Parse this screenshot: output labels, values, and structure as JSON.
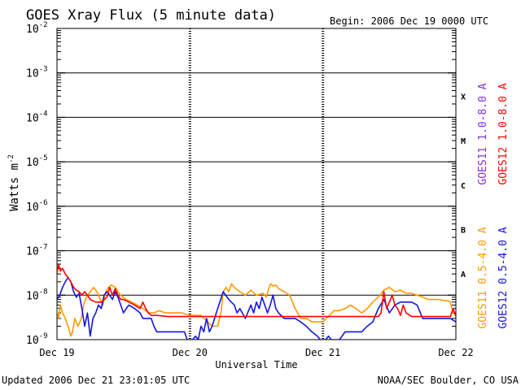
{
  "chart_data": {
    "type": "line",
    "title": "GOES Xray Flux (5 minute data)",
    "begin_label": "Begin:  2006 Dec 19 0000 UTC",
    "xlabel": "Universal Time",
    "ylabel": "Watts m",
    "ylabel_sup": "-2",
    "x_ticks": [
      "Dec 19",
      "Dec 20",
      "Dec 21",
      "Dec 22"
    ],
    "xlim": [
      0,
      72
    ],
    "x_unit": "hours since 2006 Dec 19 0000 UTC",
    "ylim": [
      1e-09,
      0.01
    ],
    "y_scale": "log",
    "y_tick_labels": [
      {
        "base": "10",
        "exp": "-9",
        "value": 1e-09
      },
      {
        "base": "10",
        "exp": "-8",
        "value": 1e-08
      },
      {
        "base": "10",
        "exp": "-7",
        "value": 1e-07
      },
      {
        "base": "10",
        "exp": "-6",
        "value": 1e-06
      },
      {
        "base": "10",
        "exp": "-5",
        "value": 1e-05
      },
      {
        "base": "10",
        "exp": "-4",
        "value": 0.0001
      },
      {
        "base": "10",
        "exp": "-3",
        "value": 0.001
      },
      {
        "base": "10",
        "exp": "-2",
        "value": 0.01
      }
    ],
    "flare_classes": [
      {
        "label": "X",
        "value": 0.0003
      },
      {
        "label": "M",
        "value": 3e-05
      },
      {
        "label": "C",
        "value": 3e-06
      },
      {
        "label": "B",
        "value": 3e-07
      },
      {
        "label": "A",
        "value": 3e-08
      }
    ],
    "series": [
      {
        "name": "GOES11 0.5-4.0 A",
        "color": "#ff9900",
        "x": [
          0,
          0.3,
          0.6,
          1,
          1.5,
          2,
          2.5,
          2.8,
          3.2,
          3.8,
          4.4,
          4.8,
          5.3,
          6,
          6.6,
          7.2,
          7.8,
          8.3,
          8.8,
          9.3,
          9.8,
          10.5,
          11,
          11.5,
          12.5,
          13.5,
          14.5,
          15.5,
          16.5,
          17.5,
          18.5,
          19.5,
          20.5,
          21.5,
          22.5,
          24,
          26,
          28,
          29,
          29.6,
          30,
          30.5,
          31,
          31.5,
          32,
          33,
          34,
          35,
          36,
          37.2,
          37.8,
          38.2,
          38.6,
          39,
          39.5,
          40,
          40.5,
          41,
          42,
          43,
          44,
          45,
          46,
          48,
          50,
          51,
          52,
          53,
          54,
          55,
          56,
          57,
          58,
          59,
          60,
          61,
          62,
          63,
          64,
          65,
          66,
          67,
          68,
          69,
          70,
          70.5,
          71,
          71.5,
          72
        ],
        "y": [
          5e-09,
          3e-09,
          6e-09,
          4e-09,
          3e-09,
          2e-09,
          1.2e-09,
          1.5e-09,
          3e-09,
          2e-09,
          3e-09,
          6e-09,
          9e-09,
          1.2e-08,
          1.5e-08,
          1.2e-08,
          8e-09,
          6e-09,
          1.2e-08,
          1.5e-08,
          1.7e-08,
          1.5e-08,
          1.2e-08,
          1e-08,
          8e-09,
          7e-09,
          6e-09,
          5e-09,
          4e-09,
          4e-09,
          4.5e-09,
          4e-09,
          4e-09,
          4e-09,
          4e-09,
          3.5e-09,
          3.5e-09,
          2e-09,
          2e-09,
          4e-09,
          1.2e-08,
          1.5e-08,
          1.2e-08,
          1.8e-08,
          1.5e-08,
          1.2e-08,
          1e-08,
          1.3e-08,
          1e-08,
          1.1e-08,
          9e-09,
          1.4e-08,
          1.8e-08,
          1.6e-08,
          1.7e-08,
          1.4e-08,
          1.3e-08,
          1.2e-08,
          1e-08,
          5e-09,
          3e-09,
          3e-09,
          2.5e-09,
          2.5e-09,
          4.5e-09,
          4.5e-09,
          5e-09,
          6e-09,
          5e-09,
          4e-09,
          5e-09,
          7e-09,
          9e-09,
          1.3e-08,
          1.5e-08,
          1.2e-08,
          1.3e-08,
          1.1e-08,
          1.1e-08,
          1e-08,
          9e-09,
          8e-09,
          8e-09,
          8e-09,
          7.5e-09,
          7.5e-09,
          7e-09,
          4e-09,
          3.5e-09
        ]
      },
      {
        "name": "GOES12 0.5-4.0 A",
        "color": "#1515e0",
        "x": [
          0,
          0.5,
          1,
          1.5,
          2,
          2.5,
          3,
          3.5,
          4,
          4.5,
          5,
          5.5,
          6,
          6.5,
          7,
          7.5,
          8,
          8.5,
          9,
          9.5,
          10,
          10.5,
          11,
          11.5,
          12,
          12.5,
          13,
          14,
          15,
          15.5,
          16,
          16.5,
          17,
          17.5,
          18,
          19,
          20,
          22,
          23,
          23.5,
          24,
          24.5,
          25,
          25.5,
          26,
          26.5,
          27,
          27.5,
          28,
          29,
          30,
          31,
          32,
          32.5,
          33,
          34,
          35,
          35.5,
          36,
          36.5,
          37,
          37.5,
          38,
          38.5,
          39,
          39.5,
          40,
          41,
          42,
          43,
          44,
          45,
          46,
          47,
          47.5,
          48,
          48.5,
          49,
          49.5,
          50,
          51,
          52,
          53,
          54,
          55,
          56,
          57,
          58,
          59,
          60,
          61,
          62,
          63,
          64,
          65,
          66,
          67,
          68,
          69,
          70,
          71,
          72
        ],
        "y": [
          8e-09,
          1e-08,
          1.5e-08,
          2e-08,
          2.5e-08,
          2e-08,
          1.2e-08,
          9e-09,
          1.1e-08,
          5e-09,
          2e-09,
          4e-09,
          1.2e-09,
          3e-09,
          4e-09,
          6e-09,
          5e-09,
          1e-08,
          1.2e-08,
          1e-08,
          8e-09,
          1.2e-08,
          9e-09,
          6e-09,
          4e-09,
          5e-09,
          6e-09,
          5e-09,
          4e-09,
          3e-09,
          3e-09,
          3e-09,
          3e-09,
          2e-09,
          1.5e-09,
          1.5e-09,
          1.5e-09,
          1.5e-09,
          1.5e-09,
          1e-09,
          1e-09,
          1e-09,
          1.2e-09,
          1e-09,
          2e-09,
          1.5e-09,
          3e-09,
          1.5e-09,
          2e-09,
          5e-09,
          1.2e-08,
          8e-09,
          6e-09,
          4e-09,
          5e-09,
          3e-09,
          6e-09,
          4e-09,
          7e-09,
          5e-09,
          9e-09,
          6e-09,
          4e-09,
          6e-09,
          1e-08,
          5e-09,
          4e-09,
          3e-09,
          3e-09,
          3e-09,
          2.5e-09,
          2e-09,
          1.5e-09,
          1.2e-09,
          1e-09,
          1e-09,
          1e-09,
          1.2e-09,
          1e-09,
          1e-09,
          1e-09,
          1.5e-09,
          1.5e-09,
          1.5e-09,
          1.5e-09,
          2e-09,
          2.5e-09,
          5e-09,
          8e-09,
          4e-09,
          6e-09,
          7e-09,
          7e-09,
          7e-09,
          6e-09,
          3e-09,
          3e-09,
          3e-09,
          3e-09,
          3e-09,
          3e-09,
          2.5e-09
        ]
      },
      {
        "name": "GOES11 1.0-8.0 A",
        "color": "#8a2be2",
        "x": [],
        "y": []
      },
      {
        "name": "GOES12 1.0-8.0 A",
        "color": "#ff0000",
        "x": [
          0,
          0.3,
          0.6,
          1,
          1.5,
          2,
          2.5,
          3,
          3.5,
          4,
          4.5,
          5,
          5.5,
          6,
          7,
          8,
          9,
          9.5,
          10,
          10.5,
          11,
          11.5,
          12,
          13,
          14,
          15,
          15.5,
          16,
          16.5,
          17,
          18,
          20,
          24,
          28,
          30,
          32,
          34,
          36,
          38,
          40,
          44,
          48,
          50,
          52,
          54,
          56,
          58,
          58.5,
          59,
          59.5,
          60,
          60.5,
          61,
          61.5,
          62,
          62.5,
          63,
          64,
          66,
          68,
          70,
          71,
          71.5,
          72
        ],
        "y": [
          3e-08,
          5e-08,
          3.5e-08,
          4e-08,
          3e-08,
          2.5e-08,
          2e-08,
          1.5e-08,
          1.3e-08,
          1.2e-08,
          1e-08,
          1.2e-08,
          1e-08,
          8e-09,
          7e-09,
          7e-09,
          9e-09,
          1.5e-08,
          1e-08,
          1.4e-08,
          1e-08,
          8e-09,
          8e-09,
          7e-09,
          6e-09,
          5e-09,
          7e-09,
          5e-09,
          4e-09,
          3.5e-09,
          3.5e-09,
          3.3e-09,
          3.3e-09,
          3.3e-09,
          3.3e-09,
          3.3e-09,
          3.3e-09,
          3.3e-09,
          3.3e-09,
          3.3e-09,
          3.3e-09,
          3.3e-09,
          3.3e-09,
          3.3e-09,
          3.3e-09,
          3.3e-09,
          3.3e-09,
          4e-09,
          1.2e-08,
          5e-09,
          7e-09,
          1e-08,
          6e-09,
          5e-09,
          3.5e-09,
          6e-09,
          4e-09,
          3.3e-09,
          3.3e-09,
          3.3e-09,
          3.3e-09,
          3.3e-09,
          5e-09,
          3.3e-09
        ]
      }
    ]
  },
  "footer": {
    "updated": "Updated 2006 Dec 21 23:01:05 UTC",
    "credit": "NOAA/SEC Boulder, CO USA"
  }
}
